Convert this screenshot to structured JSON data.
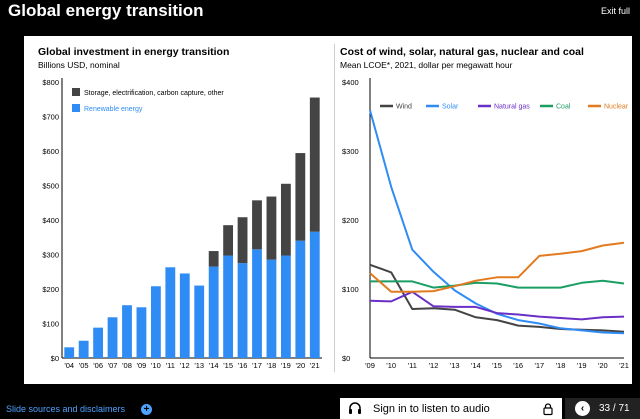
{
  "header": {
    "title": "Global energy transition",
    "exit_label": "Exit full"
  },
  "footer": {
    "sources_label": "Slide sources and disclaimers",
    "listen_label": "Sign in to listen to audio",
    "page_indicator": "33 / 71"
  },
  "chart_data": [
    {
      "type": "bar",
      "title": "Global investment in energy transition",
      "subtitle": "Billions USD, nominal",
      "categories": [
        "'04",
        "'05",
        "'06",
        "'07",
        "'08",
        "'09",
        "'10",
        "'11",
        "'12",
        "'13",
        "'14",
        "'15",
        "'16",
        "'17",
        "'18",
        "'19",
        "'20",
        "'21"
      ],
      "series": [
        {
          "name": "Renewable energy",
          "color": "#2f8cf5",
          "values": [
            31,
            50,
            88,
            118,
            153,
            147,
            208,
            263,
            245,
            210,
            265,
            297,
            275,
            315,
            285,
            297,
            340,
            366
          ]
        },
        {
          "name": "Storage, electrification, carbon capture, other",
          "color": "#444444",
          "values": [
            0,
            0,
            0,
            0,
            0,
            0,
            0,
            0,
            0,
            0,
            45,
            88,
            133,
            142,
            183,
            208,
            254,
            389
          ]
        }
      ],
      "stacked": true,
      "ylim": [
        0,
        800
      ],
      "yticks": [
        "$0",
        "$100",
        "$200",
        "$300",
        "$400",
        "$500",
        "$600",
        "$700",
        "$800"
      ],
      "legend": "top-left"
    },
    {
      "type": "line",
      "title": "Cost of wind, solar, natural gas, nuclear and coal",
      "subtitle": "Mean LCOE*, 2021, dollar per megawatt hour",
      "x": [
        "'09",
        "'10",
        "'11",
        "'12",
        "'13",
        "'14",
        "'15",
        "'16",
        "'17",
        "'18",
        "'19",
        "'20",
        "'21"
      ],
      "series": [
        {
          "name": "Wind",
          "color": "#444444",
          "values": [
            135,
            124,
            71,
            72,
            70,
            59,
            55,
            47,
            45,
            42,
            41,
            40,
            38
          ]
        },
        {
          "name": "Solar",
          "color": "#2f8cf5",
          "values": [
            359,
            248,
            157,
            125,
            98,
            79,
            64,
            55,
            50,
            43,
            40,
            37,
            36
          ]
        },
        {
          "name": "Natural gas",
          "color": "#6a2fc7",
          "values": [
            83,
            82,
            96,
            75,
            74,
            74,
            65,
            63,
            60,
            58,
            56,
            59,
            60
          ]
        },
        {
          "name": "Coal",
          "color": "#1a9e63",
          "values": [
            111,
            111,
            111,
            102,
            105,
            109,
            108,
            102,
            102,
            102,
            109,
            112,
            108
          ]
        },
        {
          "name": "Nuclear",
          "color": "#e27a1f",
          "values": [
            123,
            96,
            96,
            97,
            104,
            112,
            117,
            117,
            148,
            151,
            155,
            163,
            167
          ]
        }
      ],
      "ylim": [
        0,
        400
      ],
      "yticks": [
        "$0",
        "$100",
        "$200",
        "$300",
        "$400"
      ],
      "legend": "top"
    }
  ]
}
